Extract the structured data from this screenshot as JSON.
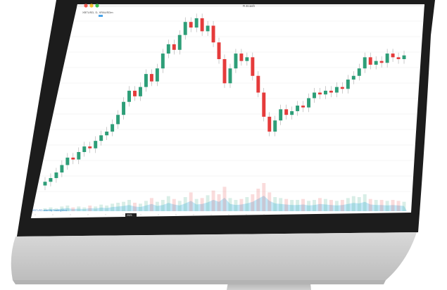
{
  "window": {
    "title": "R.Ecash",
    "traffic_lights": [
      "#f05a4f",
      "#f5be2b",
      "#3cc24f"
    ]
  },
  "chart_header": {
    "symbol": "XBTUSD, D, XRAUSDm",
    "badge_color": "#4aa3e8"
  },
  "footer": {
    "brand": "XBTUSD chart by TradingView",
    "highlight_label": "2021"
  },
  "colors": {
    "up": "#2e9e78",
    "down": "#e53b3b",
    "volume_area": "#8fd3f0",
    "grid": "#eeeeee"
  },
  "chart_data": {
    "type": "candlestick",
    "title": "",
    "xlabel": "",
    "ylabel": "",
    "note": "values in relative price units read from the visible chart (no price scale shown)",
    "ylim": [
      0,
      100
    ],
    "candles": [
      {
        "o": 7,
        "c": 9
      },
      {
        "o": 9,
        "c": 11
      },
      {
        "o": 11,
        "c": 14
      },
      {
        "o": 14,
        "c": 18
      },
      {
        "o": 18,
        "c": 22
      },
      {
        "o": 22,
        "c": 21
      },
      {
        "o": 21,
        "c": 25
      },
      {
        "o": 25,
        "c": 28
      },
      {
        "o": 28,
        "c": 27
      },
      {
        "o": 27,
        "c": 31
      },
      {
        "o": 31,
        "c": 34
      },
      {
        "o": 34,
        "c": 36
      },
      {
        "o": 36,
        "c": 40
      },
      {
        "o": 40,
        "c": 45
      },
      {
        "o": 45,
        "c": 52
      },
      {
        "o": 52,
        "c": 58
      },
      {
        "o": 58,
        "c": 55
      },
      {
        "o": 55,
        "c": 60
      },
      {
        "o": 60,
        "c": 67
      },
      {
        "o": 67,
        "c": 63
      },
      {
        "o": 63,
        "c": 70
      },
      {
        "o": 70,
        "c": 78
      },
      {
        "o": 78,
        "c": 83
      },
      {
        "o": 83,
        "c": 80
      },
      {
        "o": 80,
        "c": 88
      },
      {
        "o": 88,
        "c": 95
      },
      {
        "o": 95,
        "c": 92
      },
      {
        "o": 92,
        "c": 97
      },
      {
        "o": 97,
        "c": 90
      },
      {
        "o": 90,
        "c": 93
      },
      {
        "o": 93,
        "c": 84
      },
      {
        "o": 84,
        "c": 75
      },
      {
        "o": 75,
        "c": 62
      },
      {
        "o": 62,
        "c": 70
      },
      {
        "o": 70,
        "c": 78
      },
      {
        "o": 78,
        "c": 74
      },
      {
        "o": 74,
        "c": 76
      },
      {
        "o": 76,
        "c": 66
      },
      {
        "o": 66,
        "c": 57
      },
      {
        "o": 57,
        "c": 44
      },
      {
        "o": 44,
        "c": 36
      },
      {
        "o": 36,
        "c": 42
      },
      {
        "o": 42,
        "c": 48
      },
      {
        "o": 48,
        "c": 45
      },
      {
        "o": 45,
        "c": 47
      },
      {
        "o": 47,
        "c": 50
      },
      {
        "o": 50,
        "c": 49
      },
      {
        "o": 49,
        "c": 54
      },
      {
        "o": 54,
        "c": 57
      },
      {
        "o": 57,
        "c": 56
      },
      {
        "o": 56,
        "c": 58
      },
      {
        "o": 58,
        "c": 57
      },
      {
        "o": 57,
        "c": 60
      },
      {
        "o": 60,
        "c": 59
      },
      {
        "o": 59,
        "c": 64
      },
      {
        "o": 64,
        "c": 66
      },
      {
        "o": 66,
        "c": 70
      },
      {
        "o": 70,
        "c": 76
      },
      {
        "o": 76,
        "c": 72
      },
      {
        "o": 72,
        "c": 74
      },
      {
        "o": 74,
        "c": 73
      },
      {
        "o": 73,
        "c": 78
      },
      {
        "o": 78,
        "c": 76
      },
      {
        "o": 76,
        "c": 75
      },
      {
        "o": 75,
        "c": 77
      }
    ],
    "volume": [
      3,
      4,
      3,
      5,
      6,
      4,
      5,
      4,
      6,
      5,
      7,
      6,
      8,
      9,
      10,
      12,
      9,
      8,
      11,
      14,
      10,
      12,
      16,
      13,
      11,
      15,
      20,
      13,
      14,
      17,
      22,
      18,
      26,
      14,
      12,
      13,
      15,
      18,
      24,
      30,
      20,
      15,
      14,
      13,
      12,
      12,
      13,
      11,
      12,
      14,
      13,
      12,
      11,
      12,
      14,
      16,
      15,
      18,
      13,
      12,
      12,
      11,
      12,
      11,
      10
    ]
  }
}
